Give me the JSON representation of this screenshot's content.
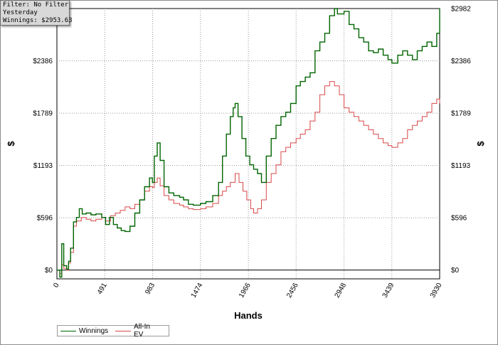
{
  "filter_box": {
    "line1": "Filter: No Filter",
    "line2": "Yesterday",
    "line3": "Winnings: $2953.63"
  },
  "chart_data": {
    "type": "line",
    "xlabel": "Hands",
    "ylabel_left": "$",
    "ylabel_right": "$",
    "xlim": [
      0,
      3930
    ],
    "ylim": [
      0,
      2982
    ],
    "x_ticks": [
      "0",
      "491",
      "983",
      "1474",
      "1966",
      "2456",
      "2948",
      "3439",
      "3930"
    ],
    "y_ticks": [
      "$0",
      "$596",
      "$1193",
      "$1789",
      "$2386",
      "$2982"
    ],
    "grid": true,
    "legend_position": "bottom-left",
    "series": [
      {
        "name": "Winnings",
        "color": "#006400",
        "points": [
          [
            0,
            0
          ],
          [
            30,
            -80
          ],
          [
            50,
            300
          ],
          [
            70,
            50
          ],
          [
            100,
            10
          ],
          [
            120,
            100
          ],
          [
            140,
            250
          ],
          [
            170,
            550
          ],
          [
            200,
            600
          ],
          [
            230,
            700
          ],
          [
            260,
            640
          ],
          [
            300,
            650
          ],
          [
            350,
            630
          ],
          [
            400,
            640
          ],
          [
            460,
            600
          ],
          [
            500,
            520
          ],
          [
            540,
            600
          ],
          [
            580,
            520
          ],
          [
            620,
            480
          ],
          [
            660,
            450
          ],
          [
            700,
            440
          ],
          [
            750,
            500
          ],
          [
            800,
            650
          ],
          [
            850,
            800
          ],
          [
            900,
            950
          ],
          [
            950,
            1050
          ],
          [
            980,
            1000
          ],
          [
            1000,
            1300
          ],
          [
            1030,
            1450
          ],
          [
            1060,
            1250
          ],
          [
            1100,
            950
          ],
          [
            1150,
            880
          ],
          [
            1200,
            850
          ],
          [
            1260,
            830
          ],
          [
            1300,
            800
          ],
          [
            1350,
            750
          ],
          [
            1400,
            740
          ],
          [
            1474,
            760
          ],
          [
            1530,
            780
          ],
          [
            1600,
            850
          ],
          [
            1660,
            1000
          ],
          [
            1700,
            1300
          ],
          [
            1740,
            1550
          ],
          [
            1780,
            1750
          ],
          [
            1810,
            1850
          ],
          [
            1830,
            1900
          ],
          [
            1860,
            1750
          ],
          [
            1900,
            1500
          ],
          [
            1940,
            1300
          ],
          [
            1980,
            1200
          ],
          [
            2020,
            1150
          ],
          [
            2060,
            1100
          ],
          [
            2100,
            1000
          ],
          [
            2150,
            1300
          ],
          [
            2200,
            1500
          ],
          [
            2250,
            1650
          ],
          [
            2300,
            1750
          ],
          [
            2350,
            1800
          ],
          [
            2400,
            1900
          ],
          [
            2456,
            2100
          ],
          [
            2500,
            2150
          ],
          [
            2550,
            2200
          ],
          [
            2600,
            2250
          ],
          [
            2650,
            2500
          ],
          [
            2700,
            2600
          ],
          [
            2750,
            2700
          ],
          [
            2800,
            2900
          ],
          [
            2850,
            2982
          ],
          [
            2880,
            2920
          ],
          [
            2948,
            2950
          ],
          [
            3000,
            2800
          ],
          [
            3050,
            2750
          ],
          [
            3100,
            2650
          ],
          [
            3150,
            2600
          ],
          [
            3200,
            2500
          ],
          [
            3250,
            2480
          ],
          [
            3300,
            2520
          ],
          [
            3350,
            2450
          ],
          [
            3400,
            2400
          ],
          [
            3439,
            2360
          ],
          [
            3500,
            2450
          ],
          [
            3550,
            2500
          ],
          [
            3600,
            2450
          ],
          [
            3650,
            2400
          ],
          [
            3700,
            2500
          ],
          [
            3750,
            2550
          ],
          [
            3800,
            2600
          ],
          [
            3850,
            2550
          ],
          [
            3900,
            2700
          ],
          [
            3930,
            2982
          ]
        ]
      },
      {
        "name": "All-In EV",
        "color": "#d84848",
        "points": [
          [
            0,
            0
          ],
          [
            30,
            -40
          ],
          [
            50,
            60
          ],
          [
            70,
            20
          ],
          [
            100,
            0
          ],
          [
            120,
            80
          ],
          [
            140,
            200
          ],
          [
            170,
            500
          ],
          [
            200,
            560
          ],
          [
            250,
            600
          ],
          [
            300,
            580
          ],
          [
            350,
            560
          ],
          [
            400,
            580
          ],
          [
            460,
            600
          ],
          [
            500,
            560
          ],
          [
            550,
            620
          ],
          [
            600,
            650
          ],
          [
            650,
            680
          ],
          [
            700,
            720
          ],
          [
            750,
            700
          ],
          [
            800,
            750
          ],
          [
            850,
            800
          ],
          [
            900,
            900
          ],
          [
            950,
            950
          ],
          [
            983,
            940
          ],
          [
            1000,
            1000
          ],
          [
            1030,
            1050
          ],
          [
            1060,
            960
          ],
          [
            1100,
            850
          ],
          [
            1150,
            800
          ],
          [
            1200,
            760
          ],
          [
            1260,
            740
          ],
          [
            1300,
            720
          ],
          [
            1350,
            700
          ],
          [
            1400,
            690
          ],
          [
            1474,
            700
          ],
          [
            1530,
            720
          ],
          [
            1600,
            760
          ],
          [
            1660,
            850
          ],
          [
            1700,
            900
          ],
          [
            1740,
            950
          ],
          [
            1780,
            1000
          ],
          [
            1830,
            1100
          ],
          [
            1870,
            1000
          ],
          [
            1910,
            900
          ],
          [
            1950,
            800
          ],
          [
            1990,
            700
          ],
          [
            2020,
            650
          ],
          [
            2060,
            700
          ],
          [
            2100,
            800
          ],
          [
            2150,
            1000
          ],
          [
            2200,
            1100
          ],
          [
            2250,
            1200
          ],
          [
            2300,
            1350
          ],
          [
            2350,
            1400
          ],
          [
            2400,
            1450
          ],
          [
            2456,
            1500
          ],
          [
            2500,
            1550
          ],
          [
            2550,
            1600
          ],
          [
            2600,
            1700
          ],
          [
            2650,
            1800
          ],
          [
            2700,
            2000
          ],
          [
            2750,
            2100
          ],
          [
            2800,
            2150
          ],
          [
            2850,
            2100
          ],
          [
            2900,
            2000
          ],
          [
            2948,
            1850
          ],
          [
            3000,
            1800
          ],
          [
            3050,
            1750
          ],
          [
            3100,
            1700
          ],
          [
            3150,
            1650
          ],
          [
            3200,
            1600
          ],
          [
            3250,
            1550
          ],
          [
            3300,
            1500
          ],
          [
            3350,
            1450
          ],
          [
            3400,
            1420
          ],
          [
            3439,
            1400
          ],
          [
            3500,
            1450
          ],
          [
            3550,
            1500
          ],
          [
            3600,
            1600
          ],
          [
            3650,
            1650
          ],
          [
            3700,
            1700
          ],
          [
            3750,
            1750
          ],
          [
            3800,
            1800
          ],
          [
            3850,
            1900
          ],
          [
            3900,
            1950
          ],
          [
            3930,
            1900
          ]
        ]
      }
    ]
  }
}
